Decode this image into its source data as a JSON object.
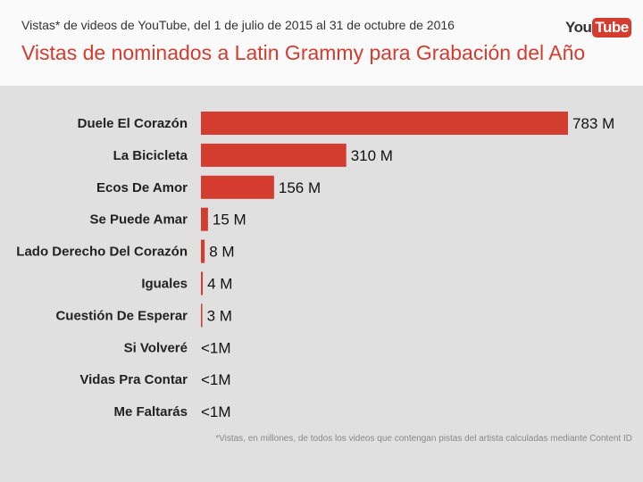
{
  "header": {
    "subtitle": "Vistas* de videos de YouTube, del 1 de julio de 2015 al 31 de octubre de 2016",
    "logo": "YouTube"
  },
  "chart_data": {
    "type": "bar",
    "orientation": "horizontal",
    "title": "Vistas de nominados a Latin Grammy para Grabación del Año",
    "categories": [
      "Duele El Corazón",
      "La Bicicleta",
      "Ecos De Amor",
      "Se Puede Amar",
      "Lado Derecho Del Corazón",
      "Iguales",
      "Cuestión De Esperar",
      "Si Volveré",
      "Vidas Pra Contar",
      "Me Faltarás"
    ],
    "values": [
      783,
      310,
      156,
      15,
      8,
      4,
      3,
      0.5,
      0.5,
      0.5
    ],
    "data_labels": [
      "783 M",
      "310 M",
      "156 M",
      "15 M",
      "8 M",
      "4 M",
      "3 M",
      "<1M",
      "<1M",
      "<1M"
    ],
    "unit": "M",
    "bar_color": "#d33c2f",
    "grid": false
  },
  "footnote": "*Vistas, en millones, de todos los videos que contengan pistas del artista calculadas mediante Content ID"
}
